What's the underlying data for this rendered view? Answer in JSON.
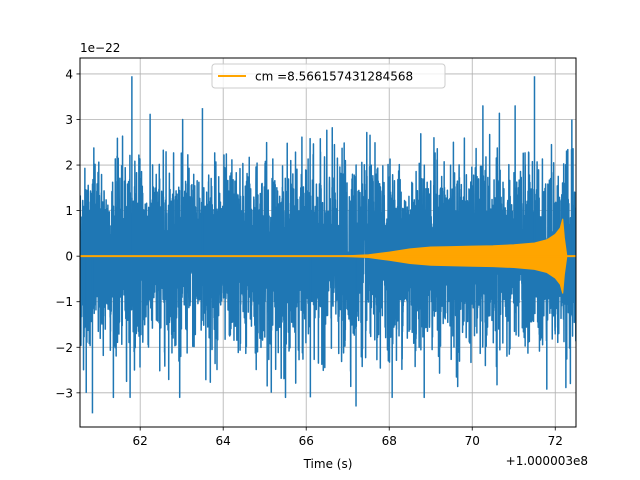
{
  "chart_data": {
    "type": "line",
    "xlabel": "Time (s)",
    "ylabel": "",
    "x_offset_text": "+1.000003e8",
    "y_offset_text": "1e−22",
    "xlim": [
      60.55,
      72.5
    ],
    "ylim": [
      -3.75,
      4.35
    ],
    "x_ticks": [
      62,
      64,
      66,
      68,
      70,
      72
    ],
    "y_ticks": [
      -3,
      -2,
      -1,
      0,
      1,
      2,
      3,
      4
    ],
    "x_tick_labels": [
      "62",
      "64",
      "66",
      "68",
      "70",
      "72"
    ],
    "y_tick_labels": [
      "−3",
      "−2",
      "−1",
      "0",
      "1",
      "2",
      "3",
      "4"
    ],
    "grid": true,
    "legend_position": "top-center",
    "series": [
      {
        "name": "",
        "color": "#1f77b4",
        "description_values": {
          "typical_envelope": [
            -2.5,
            2.5
          ],
          "max_peak": 3.95,
          "min_peak": -3.45
        }
      },
      {
        "name": "cm =8.566157431284568",
        "color": "#ffa500",
        "envelope_points": [
          [
            60.55,
            0.0
          ],
          [
            66.5,
            0.0
          ],
          [
            67.0,
            0.01
          ],
          [
            67.5,
            0.03
          ],
          [
            68.0,
            0.09
          ],
          [
            68.5,
            0.16
          ],
          [
            69.0,
            0.2
          ],
          [
            69.5,
            0.21
          ],
          [
            70.0,
            0.22
          ],
          [
            70.5,
            0.23
          ],
          [
            71.0,
            0.25
          ],
          [
            71.5,
            0.29
          ],
          [
            71.8,
            0.36
          ],
          [
            72.0,
            0.48
          ],
          [
            72.12,
            0.62
          ],
          [
            72.18,
            0.82
          ],
          [
            72.22,
            0.4
          ],
          [
            72.28,
            0.0
          ],
          [
            72.5,
            0.0
          ]
        ]
      }
    ],
    "legend_entries": [
      "cm =8.566157431284568"
    ]
  }
}
